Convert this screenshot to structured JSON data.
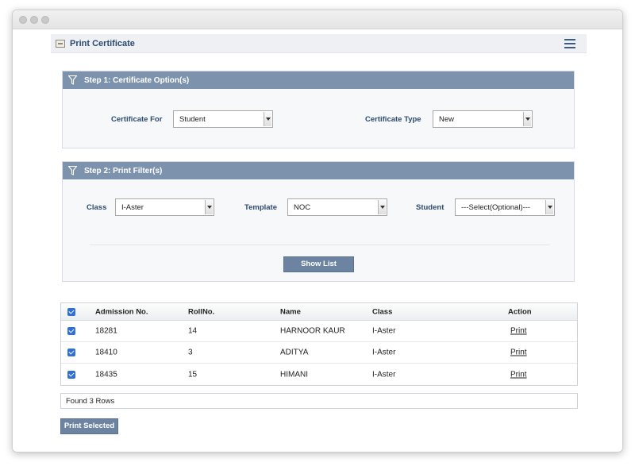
{
  "page": {
    "title": "Print Certificate"
  },
  "step1": {
    "title": "Step 1: Certificate Option(s)",
    "certificate_for": {
      "label": "Certificate For",
      "value": "Student"
    },
    "certificate_type": {
      "label": "Certificate Type",
      "value": "New"
    }
  },
  "step2": {
    "title": "Step 2: Print Filter(s)",
    "class": {
      "label": "Class",
      "value": "I-Aster"
    },
    "template": {
      "label": "Template",
      "value": "NOC"
    },
    "student": {
      "label": "Student",
      "value": "---Select(Optional)---"
    },
    "show_list_label": "Show List"
  },
  "table": {
    "headers": {
      "admission": "Admission No.",
      "roll": "RollNo.",
      "name": "Name",
      "class": "Class",
      "action": "Action"
    },
    "rows": [
      {
        "admission": "18281",
        "roll": "14",
        "name": "HARNOOR KAUR",
        "class": "I-Aster",
        "action": "Print",
        "checked": true
      },
      {
        "admission": "18410",
        "roll": "3",
        "name": "ADITYA",
        "class": "I-Aster",
        "action": "Print",
        "checked": true
      },
      {
        "admission": "18435",
        "roll": "15",
        "name": "HIMANI",
        "class": "I-Aster",
        "action": "Print",
        "checked": true
      }
    ]
  },
  "found_text": "Found 3 Rows",
  "print_selected_label": "Print Selected",
  "colors": {
    "panel_header": "#7d93ad",
    "button": "#6c84a1",
    "title": "#2c4a6e",
    "checkbox": "#2f6fd6"
  }
}
